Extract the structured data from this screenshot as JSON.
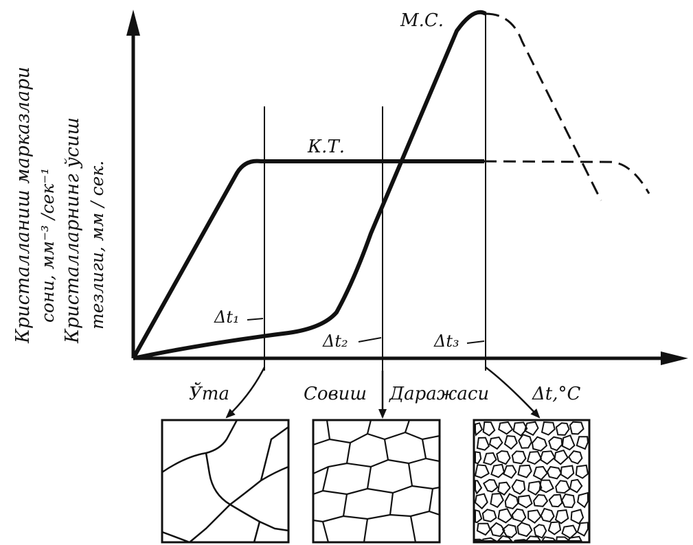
{
  "y_axis_label_line1": "Кристалланиш марказлари",
  "y_axis_label_line2": "сони, мм⁻³ /сек⁻¹",
  "y_axis_label_line3": "Кристалларнинг ўсиш",
  "y_axis_label_line4": "тезлиги, мм / сек.",
  "curve_kt_label": "К.Т.",
  "curve_mc_label": "М.С.",
  "dt1_label": "Δt₁",
  "dt2_label": "Δt₂",
  "dt3_label": "Δt₃",
  "x_axis_words": [
    "Ўта",
    "Совиш",
    "Даражаси",
    "Δt,°С"
  ],
  "colors": {
    "ink": "#111111",
    "background": "#ffffff"
  }
}
